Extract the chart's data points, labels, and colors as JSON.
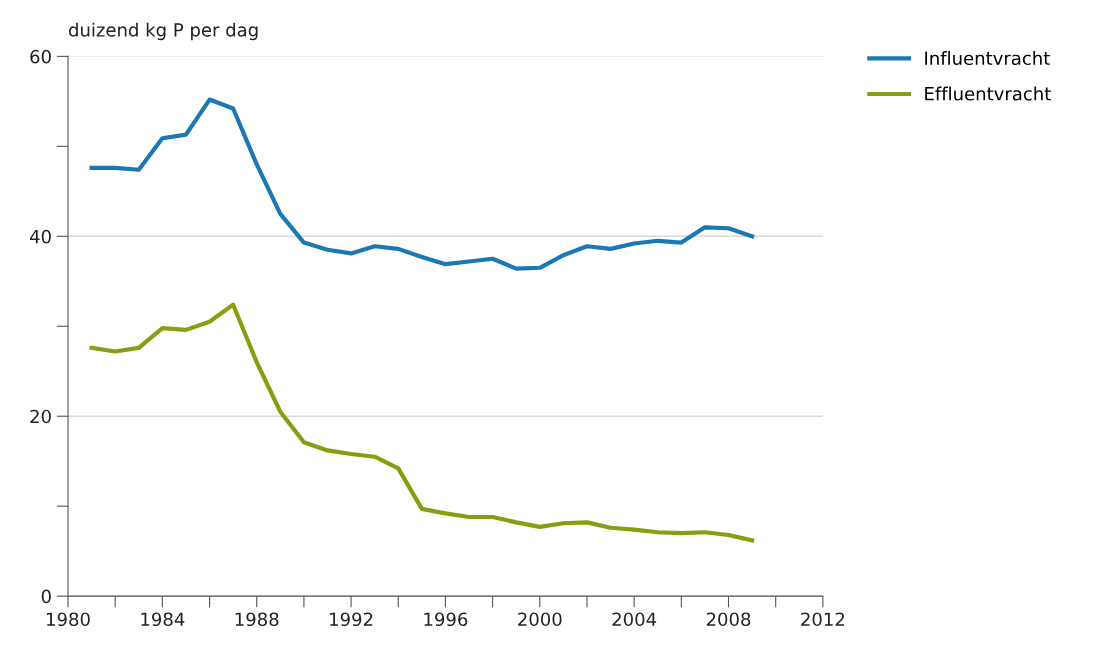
{
  "chart_data": {
    "type": "line",
    "ylabel": "duizend kg P per dag",
    "x": [
      1981,
      1982,
      1983,
      1984,
      1985,
      1986,
      1987,
      1988,
      1989,
      1990,
      1991,
      1992,
      1993,
      1994,
      1995,
      1996,
      1997,
      1998,
      1999,
      2000,
      2001,
      2002,
      2003,
      2004,
      2005,
      2006,
      2007,
      2008,
      2009
    ],
    "series": [
      {
        "name": "Influentvracht",
        "color": "#1b78b2",
        "values": [
          47.6,
          47.6,
          47.4,
          50.9,
          51.3,
          55.2,
          54.2,
          48.0,
          42.5,
          39.3,
          38.5,
          38.1,
          38.9,
          38.6,
          37.7,
          36.9,
          37.2,
          37.5,
          36.4,
          36.5,
          37.9,
          38.9,
          38.6,
          39.2,
          39.5,
          39.3,
          41.0,
          40.9,
          40.0
        ]
      },
      {
        "name": "Effluentvracht",
        "color": "#8c9c10",
        "values": [
          27.6,
          27.2,
          27.6,
          29.8,
          29.6,
          30.5,
          32.4,
          26.0,
          20.5,
          17.1,
          16.2,
          15.8,
          15.5,
          14.2,
          9.7,
          9.2,
          8.8,
          8.8,
          8.2,
          7.7,
          8.1,
          8.2,
          7.6,
          7.4,
          7.1,
          7.0,
          7.1,
          6.8,
          6.2
        ]
      }
    ],
    "xlim": [
      1980,
      2012
    ],
    "xticks": [
      1980,
      {
        "value": 1982,
        "label": null
      },
      1984,
      {
        "value": 1986,
        "label": null
      },
      1988,
      {
        "value": 1990,
        "label": null
      },
      1992,
      {
        "value": 1994,
        "label": null
      },
      1996,
      {
        "value": 1998,
        "label": null
      },
      2000,
      {
        "value": 2002,
        "label": null
      },
      2004,
      {
        "value": 2006,
        "label": null
      },
      2008,
      {
        "value": 2010,
        "label": null
      },
      2012
    ],
    "ylim": [
      0,
      60
    ],
    "yticks": [
      0,
      {
        "value": 10,
        "label": null
      },
      20,
      {
        "value": 30,
        "label": null
      },
      40,
      {
        "value": 50,
        "label": null
      },
      60
    ],
    "grid": "y",
    "legend": "top right",
    "line_style": "solid",
    "marker": "none"
  }
}
